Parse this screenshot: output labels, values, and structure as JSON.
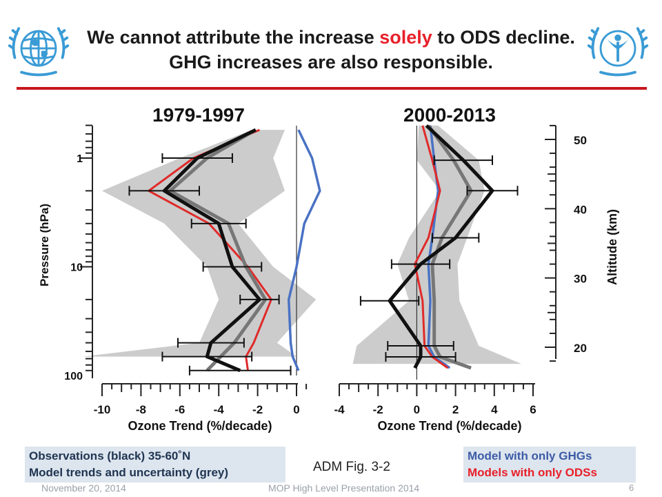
{
  "slide": {
    "title_part1": "We cannot attribute the increase ",
    "title_highlight": "solely",
    "title_part2": " to ODS decline. GHG increases are also responsible.",
    "highlight_color": "#e8202a",
    "rule_color": "#c8161d",
    "logo_left": "wmo-emblem-icon",
    "logo_right": "unep-emblem-icon",
    "logo_color": "#3a9bd5"
  },
  "legend_boxes": {
    "observations": "Observations (black) 35-60˚N",
    "model_uncertainty": "Model trends and uncertainty (grey)",
    "ghg_only": "Model with only GHGs",
    "ods_only": "Models with only ODSs",
    "figure_ref": "ADM Fig. 3-2"
  },
  "footer": {
    "date": "November 20, 2014",
    "presentation": "MOP High Level Presentation 2014",
    "page_number": "6"
  },
  "chart_data": [
    {
      "type": "line",
      "title": "1979-1997",
      "xlabel": "Ozone Trend (%/decade)",
      "ylabel": "Pressure (hPa)",
      "xlim": [
        -10,
        0
      ],
      "ylim": [
        100,
        0.5
      ],
      "y_scale": "log",
      "xticks": [
        -10,
        -8,
        -6,
        -4,
        -2,
        0
      ],
      "yticks": [
        1,
        10,
        100
      ],
      "zero_line": 0,
      "colors": {
        "observations": "#111111",
        "model_mean": "#777777",
        "ghg_only": "#4a72c4",
        "ods_only": "#e02a2a",
        "uncertainty": "#cccccc"
      },
      "series": [
        {
          "name": "Observations (black) 35-60˚N",
          "role": "observations",
          "points": [
            {
              "x": -2.9,
              "p": 90
            },
            {
              "x": -4.6,
              "p": 67
            },
            {
              "x": -4.4,
              "p": 50
            },
            {
              "x": -1.9,
              "p": 20
            },
            {
              "x": -3.3,
              "p": 10
            },
            {
              "x": -4.0,
              "p": 4
            },
            {
              "x": -6.8,
              "p": 2
            },
            {
              "x": -5.1,
              "p": 1
            },
            {
              "x": -2.1,
              "p": 0.55
            }
          ],
          "xerr": [
            2.6,
            2.3,
            1.7,
            1.0,
            1.5,
            1.4,
            1.8,
            1.8,
            null
          ]
        },
        {
          "name": "Model trends and uncertainty (grey)",
          "role": "model_mean",
          "points": [
            {
              "x": -4.6,
              "p": 90
            },
            {
              "x": -3.9,
              "p": 67
            },
            {
              "x": -3.2,
              "p": 50
            },
            {
              "x": -1.6,
              "p": 20
            },
            {
              "x": -2.6,
              "p": 10
            },
            {
              "x": -3.5,
              "p": 4
            },
            {
              "x": -6.5,
              "p": 2
            },
            {
              "x": -4.6,
              "p": 1
            },
            {
              "x": -2.1,
              "p": 0.55
            }
          ]
        },
        {
          "name": "Models with only ODSs",
          "role": "ods_only",
          "points": [
            {
              "x": -2.5,
              "p": 90
            },
            {
              "x": -2.6,
              "p": 67
            },
            {
              "x": -2.2,
              "p": 50
            },
            {
              "x": -1.3,
              "p": 20
            },
            {
              "x": -2.5,
              "p": 10
            },
            {
              "x": -4.5,
              "p": 4
            },
            {
              "x": -7.6,
              "p": 2
            },
            {
              "x": -5.3,
              "p": 1
            },
            {
              "x": -1.9,
              "p": 0.55
            }
          ]
        },
        {
          "name": "Model with only GHGs",
          "role": "ghg_only",
          "points": [
            {
              "x": 0.1,
              "p": 90
            },
            {
              "x": -0.2,
              "p": 67
            },
            {
              "x": -0.3,
              "p": 50
            },
            {
              "x": -0.4,
              "p": 20
            },
            {
              "x": 0.0,
              "p": 10
            },
            {
              "x": 0.4,
              "p": 4
            },
            {
              "x": 1.2,
              "p": 2
            },
            {
              "x": 0.8,
              "p": 1
            },
            {
              "x": 0.1,
              "p": 0.55
            }
          ]
        }
      ],
      "uncertainty_band": {
        "left": [
          {
            "x": -11.0,
            "p": 67
          },
          {
            "x": -5.0,
            "p": 50
          },
          {
            "x": -4.0,
            "p": 20
          },
          {
            "x": -4.6,
            "p": 10
          },
          {
            "x": -6.8,
            "p": 4
          },
          {
            "x": -10.0,
            "p": 2
          },
          {
            "x": -6.0,
            "p": 1
          },
          {
            "x": -2.3,
            "p": 0.55
          }
        ],
        "right": [
          {
            "x": 0.0,
            "p": 67
          },
          {
            "x": -1.0,
            "p": 50
          },
          {
            "x": 1.0,
            "p": 20
          },
          {
            "x": -1.2,
            "p": 10
          },
          {
            "x": -3.0,
            "p": 4
          },
          {
            "x": -0.6,
            "p": 2
          },
          {
            "x": -1.2,
            "p": 1
          },
          {
            "x": -0.6,
            "p": 0.55
          }
        ]
      }
    },
    {
      "type": "line",
      "title": "2000-2013",
      "xlabel": "Ozone Trend (%/decade)",
      "ylabel": "Altitude (km)",
      "xlim": [
        -4,
        6
      ],
      "ylim": [
        17,
        52
      ],
      "xticks": [
        -4,
        -2,
        0,
        2,
        4,
        6
      ],
      "yticks": [
        20,
        30,
        40,
        50
      ],
      "zero_line": 0,
      "colors": {
        "observations": "#111111",
        "model_mean": "#777777",
        "ghg_only": "#4a72c4",
        "ods_only": "#e02a2a",
        "uncertainty": "#cccccc"
      },
      "series": [
        {
          "name": "Observations (black) 35-60˚N",
          "role": "observations",
          "points": [
            {
              "z": 17.0,
              "x": -0.1
            },
            {
              "z": 18.6,
              "x": 0.2
            },
            {
              "z": 20.2,
              "x": 0.2
            },
            {
              "z": 26.7,
              "x": -1.4
            },
            {
              "z": 32.0,
              "x": 0.2
            },
            {
              "z": 35.8,
              "x": 2.0
            },
            {
              "z": 42.6,
              "x": 3.9
            },
            {
              "z": 47.0,
              "x": 2.4
            },
            {
              "z": 52.0,
              "x": 0.5
            }
          ],
          "xerr": [
            null,
            1.8,
            1.7,
            1.5,
            1.5,
            1.2,
            1.3,
            1.5,
            null
          ]
        },
        {
          "name": "Model trends and uncertainty (grey)",
          "role": "model_mean",
          "points": [
            {
              "z": 17.0,
              "x": 2.8
            },
            {
              "z": 18.6,
              "x": 1.2
            },
            {
              "z": 20.2,
              "x": 0.9
            },
            {
              "z": 26.7,
              "x": 0.9
            },
            {
              "z": 32.0,
              "x": 0.8
            },
            {
              "z": 35.8,
              "x": 1.3
            },
            {
              "z": 42.6,
              "x": 2.8
            },
            {
              "z": 47.0,
              "x": 1.9
            },
            {
              "z": 52.0,
              "x": 0.6
            }
          ]
        },
        {
          "name": "Models with only ODSs",
          "role": "ods_only",
          "points": [
            {
              "z": 17.0,
              "x": 1.6
            },
            {
              "z": 18.6,
              "x": 0.8
            },
            {
              "z": 20.2,
              "x": 0.4
            },
            {
              "z": 26.7,
              "x": 0.3
            },
            {
              "z": 32.0,
              "x": -0.1
            },
            {
              "z": 35.8,
              "x": 0.6
            },
            {
              "z": 42.6,
              "x": 1.2
            },
            {
              "z": 47.0,
              "x": 0.8
            },
            {
              "z": 52.0,
              "x": 0.3
            }
          ]
        },
        {
          "name": "Model with only GHGs",
          "role": "ghg_only",
          "points": [
            {
              "z": 17.0,
              "x": 1.7
            },
            {
              "z": 18.6,
              "x": 0.9
            },
            {
              "z": 20.2,
              "x": 0.6
            },
            {
              "z": 26.7,
              "x": 0.7
            },
            {
              "z": 32.0,
              "x": 0.6
            },
            {
              "z": 35.8,
              "x": 0.8
            },
            {
              "z": 42.6,
              "x": 1.1
            },
            {
              "z": 47.0,
              "x": 0.9
            },
            {
              "z": 52.0,
              "x": 0.7
            }
          ]
        }
      ],
      "uncertainty_band": {
        "left": [
          {
            "z": 17.6,
            "x": -3.3
          },
          {
            "z": 20.2,
            "x": -3.1
          },
          {
            "z": 26.7,
            "x": -0.4
          },
          {
            "z": 32.0,
            "x": -1.0
          },
          {
            "z": 35.8,
            "x": -0.4
          },
          {
            "z": 42.6,
            "x": 1.2
          },
          {
            "z": 47.0,
            "x": 0.0
          },
          {
            "z": 52.0,
            "x": 0.1
          }
        ],
        "right": [
          {
            "z": 17.6,
            "x": 5.4
          },
          {
            "z": 20.2,
            "x": 3.2
          },
          {
            "z": 26.7,
            "x": 2.2
          },
          {
            "z": 32.0,
            "x": 2.1
          },
          {
            "z": 35.8,
            "x": 2.6
          },
          {
            "z": 42.6,
            "x": 3.5
          },
          {
            "z": 47.0,
            "x": 3.2
          },
          {
            "z": 52.0,
            "x": 1.1
          }
        ]
      }
    }
  ]
}
